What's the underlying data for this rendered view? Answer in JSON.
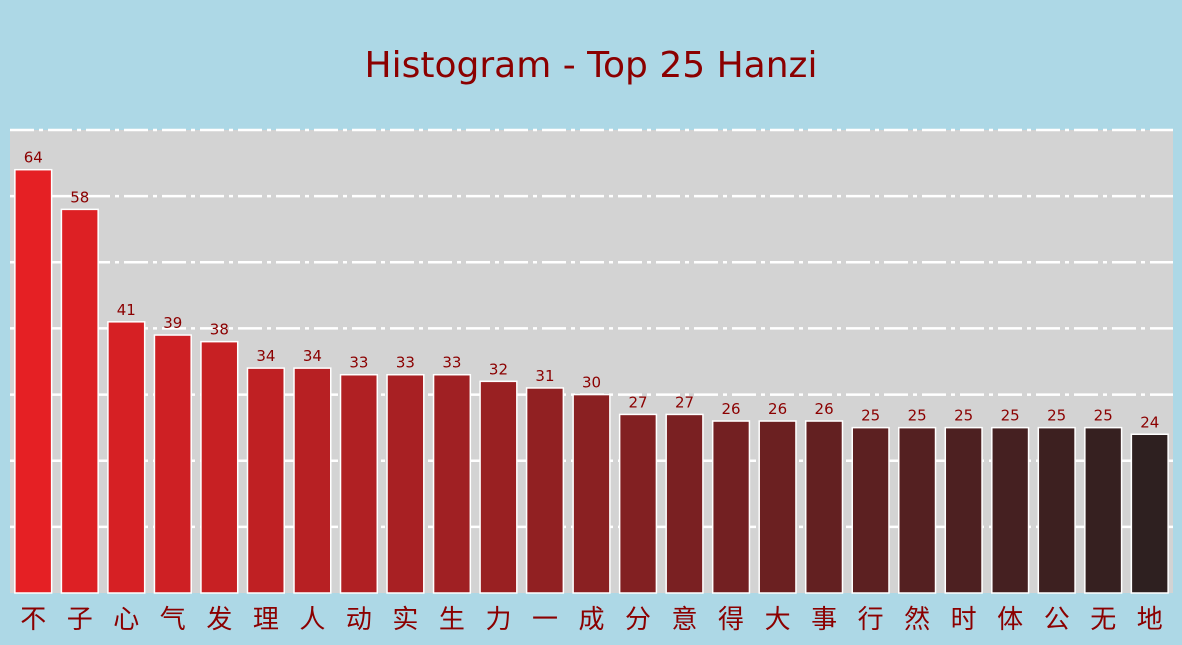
{
  "chart_data": {
    "type": "bar",
    "title": "Histogram - Top 25 Hanzi",
    "xlabel": "",
    "ylabel": "",
    "categories": [
      "不",
      "子",
      "心",
      "气",
      "发",
      "理",
      "人",
      "动",
      "实",
      "生",
      "力",
      "一",
      "成",
      "分",
      "意",
      "得",
      "大",
      "事",
      "行",
      "然",
      "时",
      "体",
      "公",
      "无",
      "地"
    ],
    "values": [
      64,
      58,
      41,
      39,
      38,
      34,
      34,
      33,
      33,
      33,
      32,
      31,
      30,
      27,
      27,
      26,
      26,
      26,
      25,
      25,
      25,
      25,
      25,
      25,
      24
    ],
    "ylim": [
      0,
      70
    ],
    "grid": true,
    "data_labels": true,
    "legend": "none",
    "colors": {
      "background": "#add8e6",
      "plot_background": "#d3d3d3",
      "bar_start": "#e52024",
      "bar_end": "#2e2020",
      "text": "#8b0000",
      "grid": "#ffffff"
    }
  }
}
